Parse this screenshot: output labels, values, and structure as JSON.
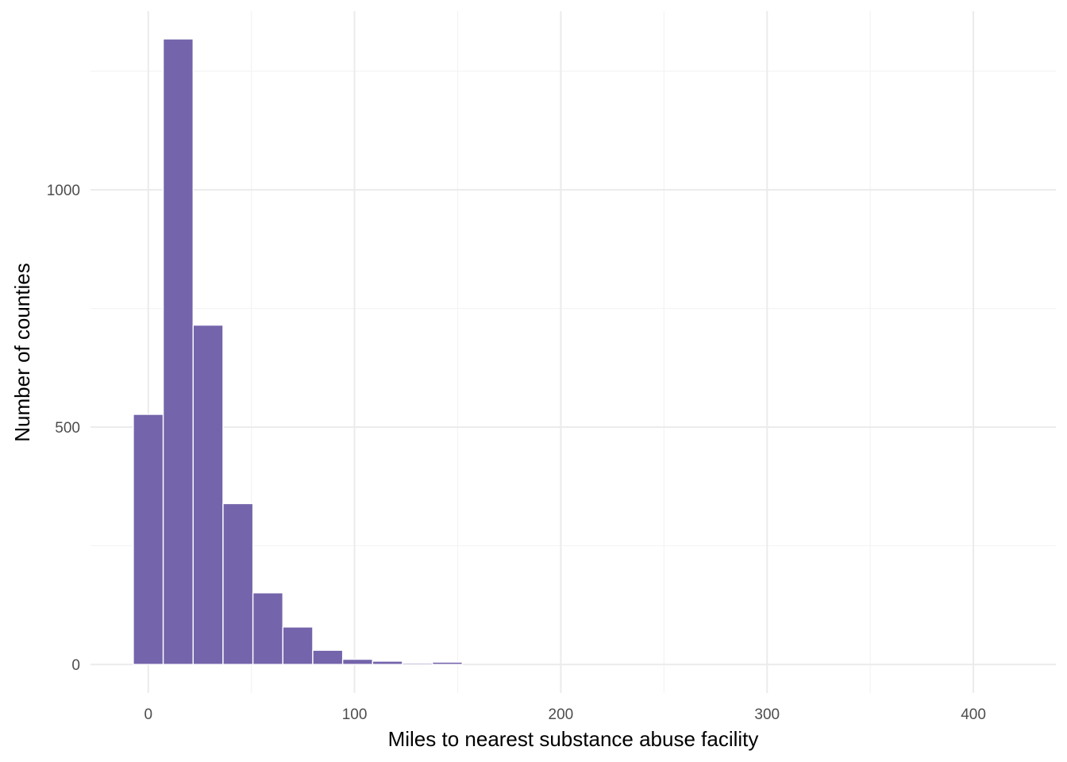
{
  "chart_data": {
    "type": "bar",
    "title": "",
    "xlabel": "Miles to nearest substance abuse facility",
    "ylabel": "Number of counties",
    "xlim": [
      -28,
      440
    ],
    "ylim": [
      -60,
      1400
    ],
    "x_ticks": [
      0,
      100,
      200,
      300,
      400
    ],
    "y_ticks": [
      0,
      500,
      1000
    ],
    "x_minor_ticks": [
      50,
      150,
      250,
      350
    ],
    "y_minor_ticks": [
      250,
      750,
      1250
    ],
    "grid": true,
    "legend": "none",
    "bin_width": 14.5,
    "bins": [
      {
        "x": 0,
        "count": 527
      },
      {
        "x": 14.5,
        "count": 1318
      },
      {
        "x": 29,
        "count": 715
      },
      {
        "x": 43.5,
        "count": 339
      },
      {
        "x": 58,
        "count": 151
      },
      {
        "x": 72.5,
        "count": 79
      },
      {
        "x": 87,
        "count": 30
      },
      {
        "x": 101.5,
        "count": 11
      },
      {
        "x": 116,
        "count": 7
      },
      {
        "x": 130.5,
        "count": 3
      },
      {
        "x": 145,
        "count": 5
      },
      {
        "x": 159.5,
        "count": 0
      },
      {
        "x": 174,
        "count": 0
      },
      {
        "x": 188.5,
        "count": 0
      },
      {
        "x": 203,
        "count": 0
      },
      {
        "x": 217.5,
        "count": 0
      },
      {
        "x": 232,
        "count": 0
      },
      {
        "x": 246.5,
        "count": 0
      },
      {
        "x": 261,
        "count": 0
      },
      {
        "x": 275.5,
        "count": 0
      },
      {
        "x": 290,
        "count": 0
      },
      {
        "x": 304.5,
        "count": 0
      },
      {
        "x": 319,
        "count": 0
      },
      {
        "x": 333.5,
        "count": 0
      },
      {
        "x": 348,
        "count": 0
      },
      {
        "x": 362.5,
        "count": 0
      },
      {
        "x": 377,
        "count": 0
      },
      {
        "x": 391.5,
        "count": 0
      },
      {
        "x": 406,
        "count": 0
      },
      {
        "x": 420.5,
        "count": 0
      }
    ],
    "colors": {
      "bar_fill": "#7464AB",
      "bar_outline": "#ffffff",
      "grid_major": "#EBEBEB",
      "grid_minor": "#F3F3F3",
      "tick_label": "#4D4D4D",
      "axis_title": "#000000"
    }
  }
}
